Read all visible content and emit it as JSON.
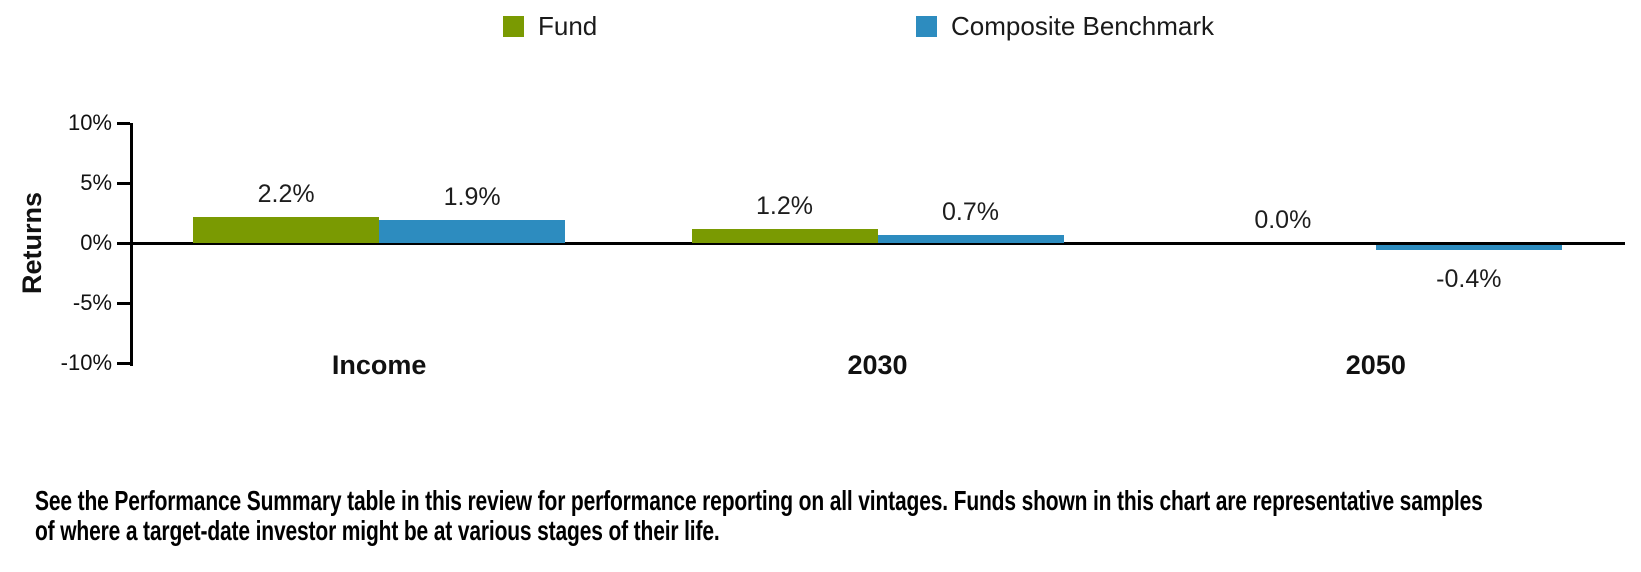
{
  "legend": {
    "items": [
      {
        "label": "Fund",
        "color": "#7A9A02"
      },
      {
        "label": "Composite Benchmark",
        "color": "#2D8CBF"
      }
    ]
  },
  "chart_data": {
    "type": "bar",
    "title": "",
    "xlabel": "",
    "ylabel": "Returns",
    "categories": [
      "Income",
      "2030",
      "2050"
    ],
    "series": [
      {
        "name": "Fund",
        "color": "#7A9A02",
        "values": [
          2.2,
          1.2,
          0.0
        ],
        "labels": [
          "2.2%",
          "1.2%",
          "0.0%"
        ]
      },
      {
        "name": "Composite Benchmark",
        "color": "#2D8CBF",
        "values": [
          1.9,
          0.7,
          -0.4
        ],
        "labels": [
          "1.9%",
          "0.7%",
          "-0.4%"
        ]
      }
    ],
    "ylim": [
      -10,
      10
    ],
    "yticks": [
      {
        "value": 10,
        "label": "10%"
      },
      {
        "value": 5,
        "label": "5%"
      },
      {
        "value": 0,
        "label": "0%"
      },
      {
        "value": -5,
        "label": "-5%"
      },
      {
        "value": -10,
        "label": "-10%"
      }
    ],
    "grid": false,
    "legend_position": "top",
    "bar_value_labels": true
  },
  "footer": {
    "line1": "See the Performance Summary table in this review for performance reporting on all vintages. Funds shown in this chart are representative samples",
    "line2": "of where a target-date investor might be at various stages of their life."
  }
}
